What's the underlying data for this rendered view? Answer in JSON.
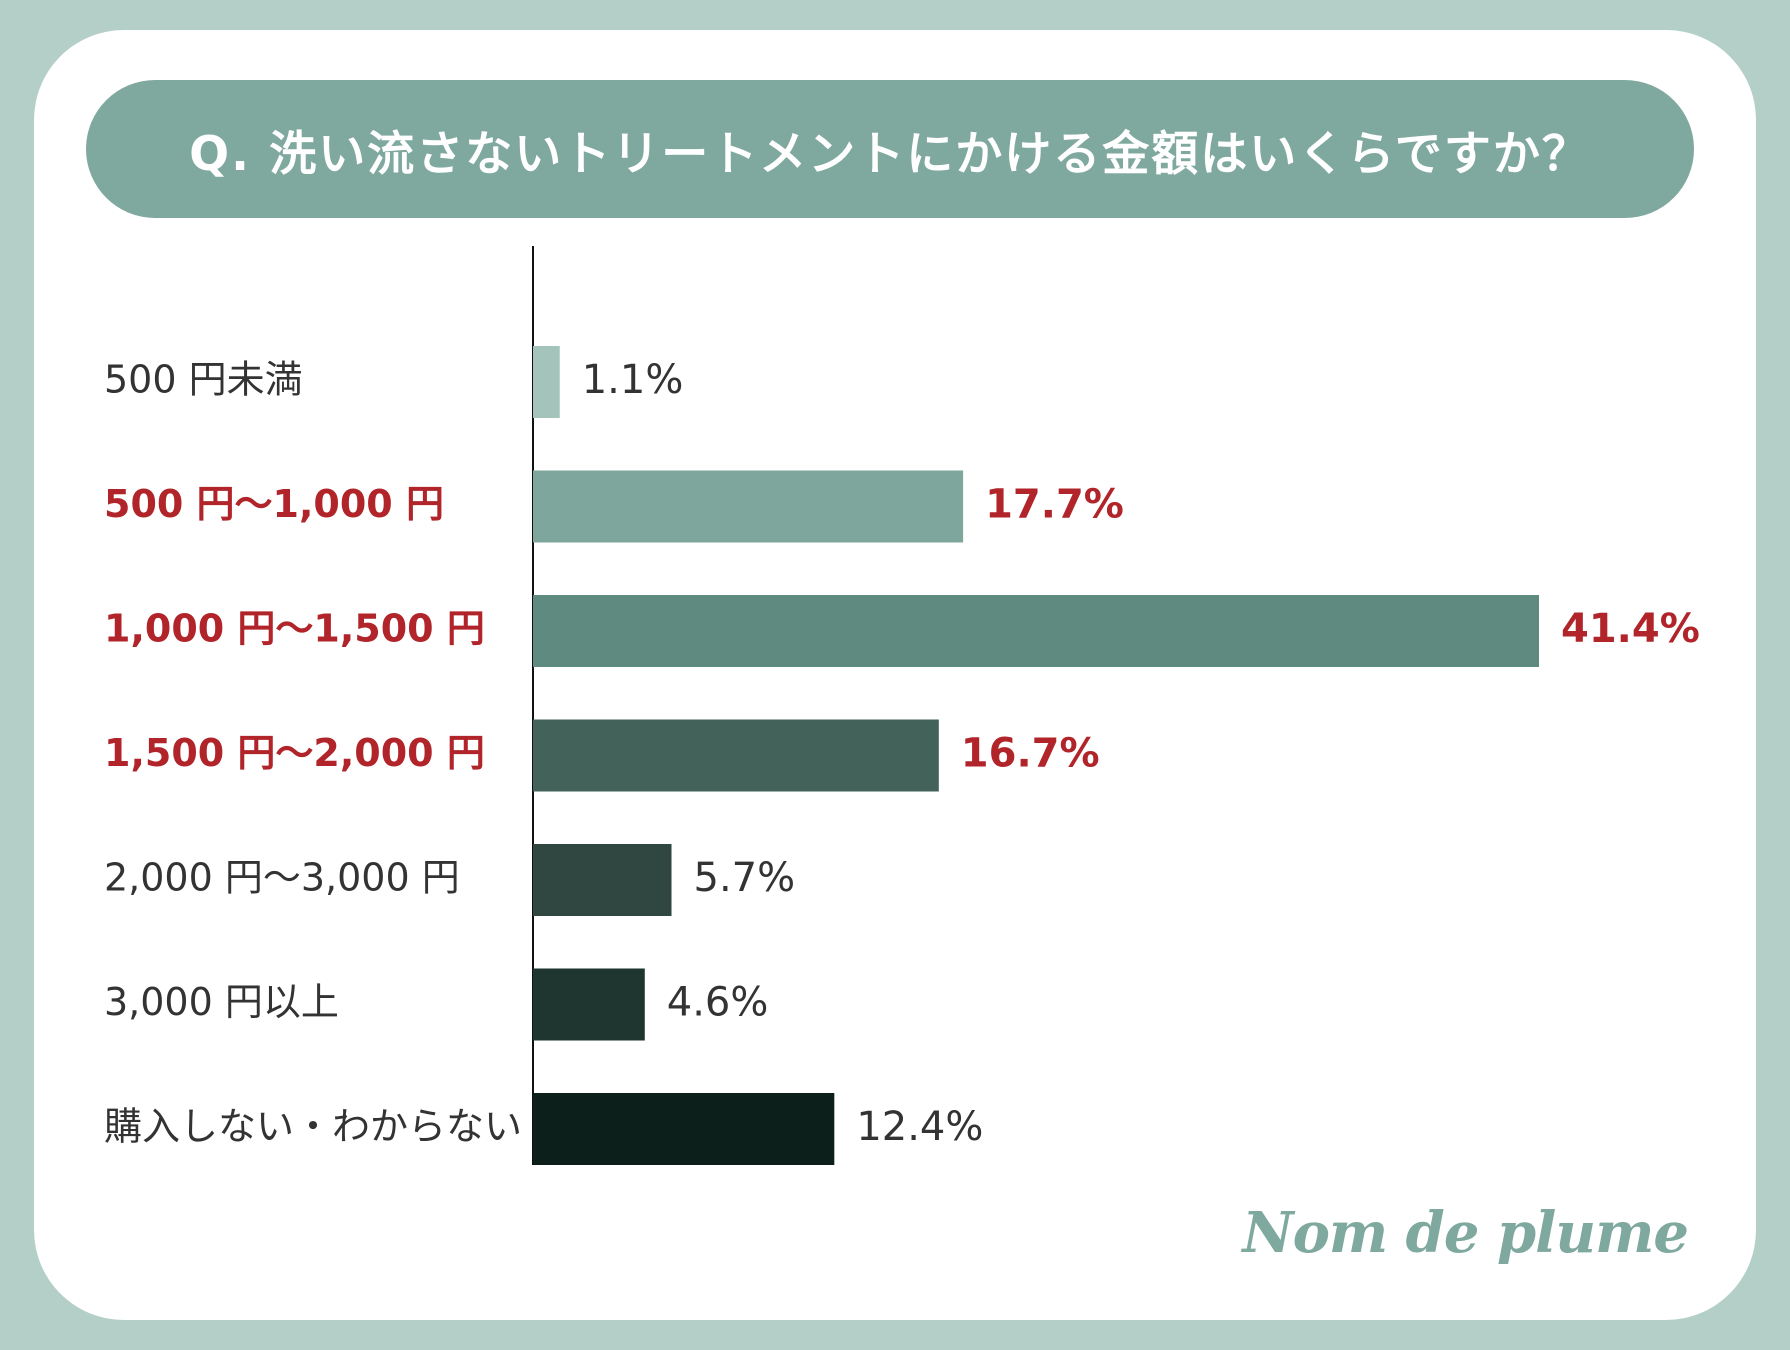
{
  "title": "Q. 洗い流さないトリートメントにかける金額はいくらですか？",
  "brand": "Nom de plume",
  "chart_data": {
    "type": "bar",
    "orientation": "horizontal",
    "categories": [
      "500 円未満",
      "500 円〜1,000 円",
      "1,000 円〜1,500 円",
      "1,500 円〜2,000 円",
      "2,000 円〜3,000 円",
      "3,000 円以上",
      "購入しない・わからない"
    ],
    "values": [
      1.1,
      17.7,
      41.4,
      16.7,
      5.7,
      4.6,
      12.4
    ],
    "value_labels": [
      "1.1%",
      "17.7%",
      "41.4%",
      "16.7%",
      "5.7%",
      "4.6%",
      "12.4%"
    ],
    "highlighted": [
      false,
      true,
      true,
      true,
      false,
      false,
      false
    ],
    "bar_colors": [
      "#a3c3bb",
      "#7ea69c",
      "#5f8a7f",
      "#43625a",
      "#304741",
      "#1e3530",
      "#0d1f1a"
    ],
    "label_color": "#333333",
    "highlight_color": "#b0242a",
    "xlim": [
      0,
      41.4
    ],
    "grid": false
  }
}
